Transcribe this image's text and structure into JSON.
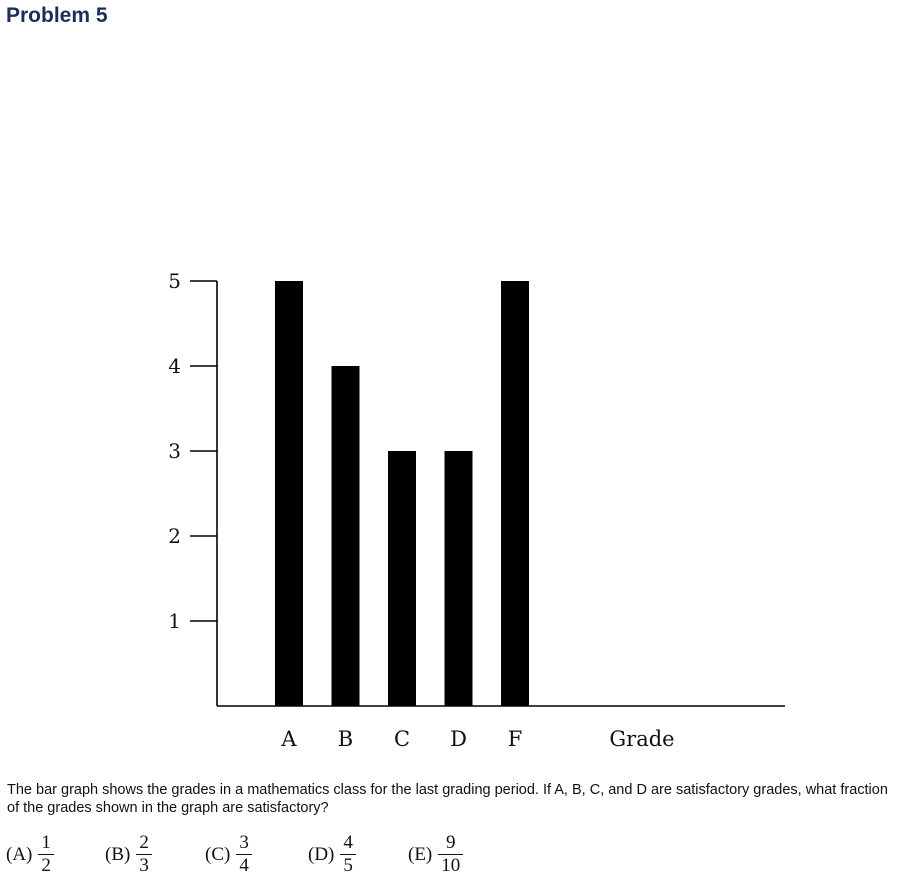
{
  "problem": {
    "title": "Problem 5"
  },
  "chart_data": {
    "type": "bar",
    "categories": [
      "A",
      "B",
      "C",
      "D",
      "F"
    ],
    "values": [
      5,
      4,
      3,
      3,
      5
    ],
    "xlabel": "Grade",
    "ylabel": "",
    "yticks": [
      "1",
      "2",
      "3",
      "4",
      "5"
    ],
    "ylim": [
      0,
      5
    ],
    "grid": false,
    "bar_color": "#000000"
  },
  "question": {
    "text": "The bar graph shows the grades in a mathematics class for the last grading period. If A, B, C, and D are satisfactory grades, what fraction of the grades shown in the graph are satisfactory?"
  },
  "choices": [
    {
      "label": "(A)",
      "num": "1",
      "den": "2"
    },
    {
      "label": "(B)",
      "num": "2",
      "den": "3"
    },
    {
      "label": "(C)",
      "num": "3",
      "den": "4"
    },
    {
      "label": "(D)",
      "num": "4",
      "den": "5"
    },
    {
      "label": "(E)",
      "num": "9",
      "den": "10"
    }
  ]
}
